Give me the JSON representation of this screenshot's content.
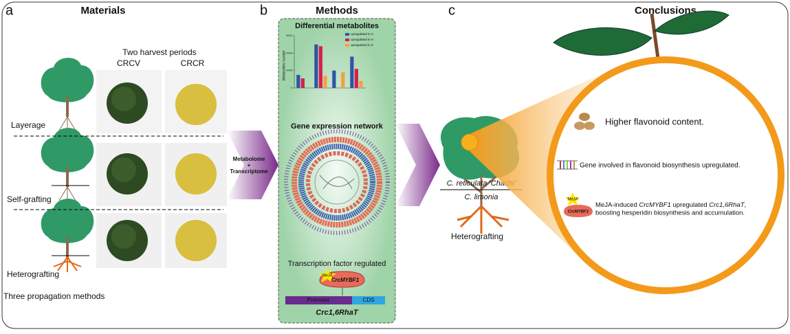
{
  "panel_a": {
    "letter": "a",
    "title": "Materials",
    "harvest": "Two harvest periods",
    "col1": "CRCV",
    "col2": "CRCR",
    "rows": [
      "Layerage",
      "Self-grafting",
      "Heterografting"
    ],
    "footer": "Three propagation methods"
  },
  "arrow1": {
    "line1": "Metabolome",
    "line2": "+",
    "line3": "Transcriptome"
  },
  "panel_b": {
    "letter": "b",
    "title": "Methods",
    "chart": {
      "title": "Differential metabolites",
      "y_label": "Metabolites number",
      "ylim": [
        0,
        3000
      ],
      "yticks": [
        0,
        1000,
        2000,
        3000
      ],
      "series": [
        {
          "name": "upregulated in C",
          "color": "#2f55a4",
          "values": [
            750,
            2500,
            1000,
            1800
          ]
        },
        {
          "name": "upregulated in H",
          "color": "#d81e50",
          "values": [
            550,
            2400,
            0,
            1100
          ]
        },
        {
          "name": "upregulated in S",
          "color": "#f3a046",
          "values": [
            0,
            700,
            900,
            400
          ]
        }
      ]
    },
    "network": "Gene expression network",
    "tf_title": "Transcription factor regulated",
    "meja": "MeJA",
    "tf": "CrcMYBF1",
    "promoter": "Promoter",
    "cds": "CDS",
    "gene": "Crc1,6RhaT"
  },
  "panel_c": {
    "letter": "c",
    "title": "Conclusions",
    "scion": "C. reticulata ‘Chachi’",
    "stock": "C. limonia",
    "graft": "Heterografting",
    "c1": "Higher flavonoid content.",
    "c2": "Gene involved in flavonoid biosynthesis upregulated.",
    "c3a": "MeJA-induced ",
    "c3b": "CrcMYBF1",
    "c3c": " upregulated ",
    "c3d": "Crc1,6RhaT",
    "c3e": ",",
    "c3f": "boosting hesperidin biosynthesis and accumulation.",
    "meja": "MeJA",
    "tf": "CrcMYBF1"
  }
}
